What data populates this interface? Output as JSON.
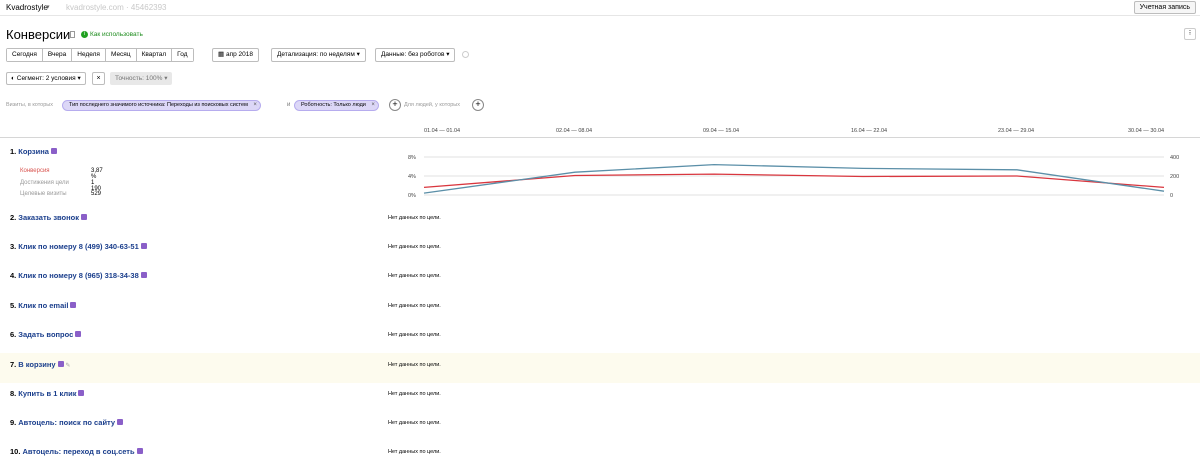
{
  "topbar": {
    "site_name": "Kvadrostyle",
    "site_url": "kvadrostyle.com · 45462393",
    "account_label": "Учетная запись"
  },
  "page": {
    "title": "Конверсии",
    "howto_label": "Как использовать"
  },
  "toolbar": {
    "periods": [
      "Сегодня",
      "Вчера",
      "Неделя",
      "Месяц",
      "Квартал",
      "Год"
    ],
    "date_range": "апр 2018",
    "detail_label": "Детализация: по неделям",
    "data_label": "Данные: без роботов"
  },
  "segment": {
    "label": "Сегмент: 2 условия",
    "accuracy": "Точность: 100%"
  },
  "filters": {
    "prefix": "Визиты, в которых",
    "chip1": "Тип последнего значимого источника: Переходы из поисковых систем",
    "and": "и",
    "chip2": "Роботность: Только люди",
    "hint": "Для людей, у которых"
  },
  "weeks": [
    "01.04 — 01.04",
    "02.04 — 08.04",
    "09.04 — 15.04",
    "16.04 — 22.04",
    "23.04 — 29.04",
    "30.04 — 30.04"
  ],
  "goals": [
    {
      "num": "1.",
      "name": "Корзина"
    },
    {
      "num": "2.",
      "name": "Заказать звонок"
    },
    {
      "num": "3.",
      "name": "Клик по номеру 8 (499) 340-63-51"
    },
    {
      "num": "4.",
      "name": "Клик по номеру 8 (965) 318-34-38"
    },
    {
      "num": "5.",
      "name": "Клик по email"
    },
    {
      "num": "6.",
      "name": "Задать вопрос"
    },
    {
      "num": "7.",
      "name": "В корзину"
    },
    {
      "num": "8.",
      "name": "Купить в 1 клик"
    },
    {
      "num": "9.",
      "name": "Автоцель: поиск по сайту"
    },
    {
      "num": "10.",
      "name": "Автоцель: переход в соц.сеть"
    }
  ],
  "no_data_text": "Нет данных по цели.",
  "stats": {
    "conv_label": "Конверсия",
    "conv_value": "3,87 %",
    "reach_label": "Достижения цели",
    "reach_value": "1 190",
    "visits_label": "Целевые визиты",
    "visits_value": "529"
  },
  "chart_data": {
    "type": "line",
    "x": [
      "01.04 — 01.04",
      "02.04 — 08.04",
      "09.04 — 15.04",
      "16.04 — 22.04",
      "23.04 — 29.04",
      "30.04 — 30.04"
    ],
    "left_ticks": [
      "8%",
      "4%",
      "0%"
    ],
    "right_ticks": [
      "400",
      "200",
      "0"
    ],
    "left_ylim": [
      0,
      8
    ],
    "right_ylim": [
      0,
      400
    ],
    "series": [
      {
        "color": "#d9363e",
        "axis": "left",
        "values": [
          1.6,
          4.1,
          4.4,
          3.9,
          4.0,
          1.6
        ]
      },
      {
        "color": "#5b8fa8",
        "axis": "right",
        "values": [
          20,
          240,
          320,
          280,
          265,
          40
        ]
      }
    ]
  }
}
